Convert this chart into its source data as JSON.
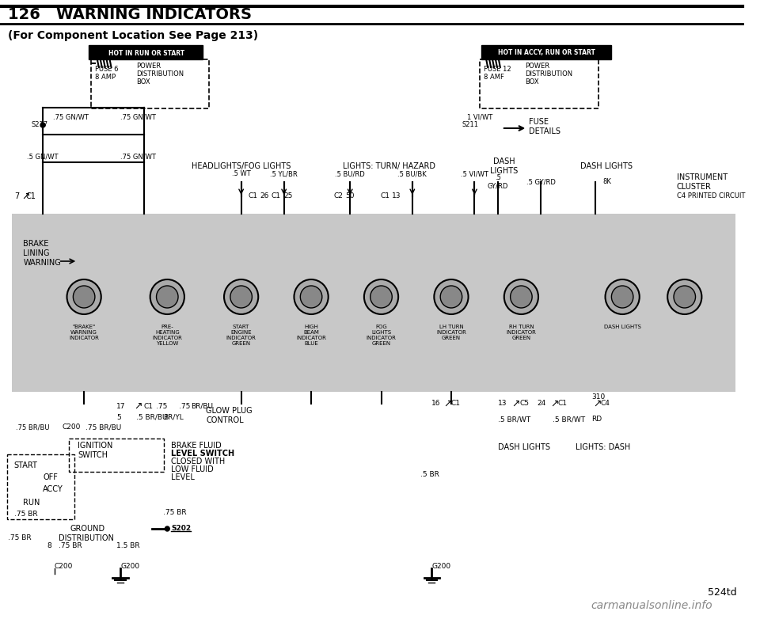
{
  "title": "126   WARNING INDICATORS",
  "subtitle": "(For Component Location See Page 213)",
  "page_num": "524td",
  "watermark": "carmanualsonline.info",
  "bg_color": "#ffffff",
  "diagram_bg": "#d0d0d0",
  "title_color": "#000000",
  "line_color": "#000000"
}
